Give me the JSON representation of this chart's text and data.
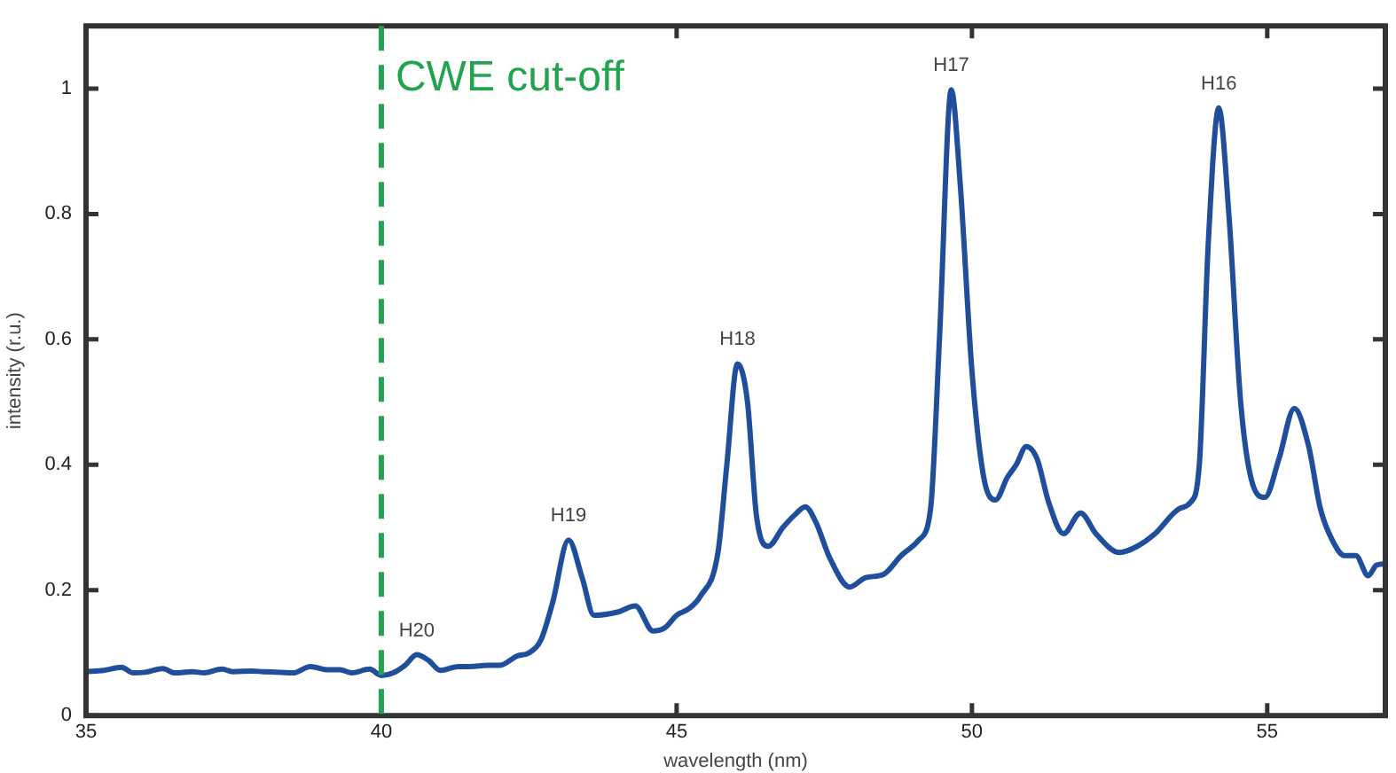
{
  "chart_data": {
    "type": "line",
    "xlabel": "wavelength (nm)",
    "ylabel": "intensity (r.u.)",
    "xlim": [
      35,
      57
    ],
    "xticks": [
      35,
      40,
      45,
      50,
      55
    ],
    "ylim": [
      0,
      1.1
    ],
    "yticks": [
      0,
      0.2,
      0.4,
      0.6,
      0.8,
      1
    ],
    "grid": false,
    "legend": false,
    "marker": "none",
    "line_style": "solid",
    "series": [
      {
        "color": "#1f4e9c",
        "x": [
          35,
          35.3,
          35.6,
          35.8,
          36,
          36.3,
          36.5,
          36.8,
          37,
          37.3,
          37.5,
          37.8,
          38,
          38.3,
          38.5,
          38.8,
          39.1,
          39.3,
          39.5,
          39.8,
          40,
          40.2,
          40.4,
          40.6,
          40.8,
          41,
          41.3,
          41.5,
          41.8,
          42,
          42.3,
          42.5,
          42.7,
          42.9,
          43.17,
          43.4,
          43.6,
          44,
          44.3,
          44.6,
          44.8,
          45,
          45.2,
          45.4,
          45.7,
          45.85,
          46.03,
          46.2,
          46.35,
          46.55,
          46.8,
          47,
          47.18,
          47.35,
          47.6,
          47.93,
          48.2,
          48.5,
          48.8,
          49.1,
          49.3,
          49.45,
          49.65,
          49.8,
          50,
          50.2,
          50.4,
          50.6,
          50.75,
          50.92,
          51.1,
          51.3,
          51.55,
          51.84,
          52.1,
          52.5,
          52.8,
          53.1,
          53.51,
          53.7,
          53.85,
          54,
          54.18,
          54.35,
          54.55,
          54.75,
          54.96,
          55.2,
          55.46,
          55.7,
          55.9,
          56.1,
          56.31,
          56.5,
          56.71,
          56.85,
          57
        ],
        "values": [
          0.07,
          0.072,
          0.077,
          0.068,
          0.069,
          0.075,
          0.068,
          0.07,
          0.068,
          0.074,
          0.07,
          0.071,
          0.07,
          0.069,
          0.068,
          0.078,
          0.073,
          0.073,
          0.068,
          0.074,
          0.064,
          0.068,
          0.08,
          0.097,
          0.088,
          0.072,
          0.078,
          0.078,
          0.08,
          0.08,
          0.095,
          0.1,
          0.12,
          0.18,
          0.28,
          0.22,
          0.16,
          0.165,
          0.175,
          0.135,
          0.14,
          0.16,
          0.17,
          0.19,
          0.26,
          0.4,
          0.561,
          0.5,
          0.32,
          0.27,
          0.3,
          0.32,
          0.333,
          0.31,
          0.25,
          0.205,
          0.22,
          0.225,
          0.255,
          0.28,
          0.33,
          0.6,
          0.998,
          0.85,
          0.55,
          0.38,
          0.344,
          0.38,
          0.4,
          0.429,
          0.41,
          0.34,
          0.29,
          0.323,
          0.29,
          0.26,
          0.27,
          0.29,
          0.33,
          0.34,
          0.4,
          0.75,
          0.969,
          0.8,
          0.5,
          0.37,
          0.348,
          0.41,
          0.49,
          0.43,
          0.33,
          0.28,
          0.255,
          0.255,
          0.223,
          0.24,
          0.242
        ]
      }
    ],
    "ref_lines": [
      {
        "axis": "x",
        "value": 40,
        "label": "CWE cut-off",
        "color": "#22a44f",
        "line_style": "dashed"
      }
    ],
    "annotations": [
      {
        "text": "H20",
        "x": 40.6,
        "y": 0.097
      },
      {
        "text": "H19",
        "x": 43.17,
        "y": 0.28
      },
      {
        "text": "H18",
        "x": 46.03,
        "y": 0.561
      },
      {
        "text": "H17",
        "x": 49.65,
        "y": 0.998
      },
      {
        "text": "H16",
        "x": 54.18,
        "y": 0.969
      }
    ]
  }
}
